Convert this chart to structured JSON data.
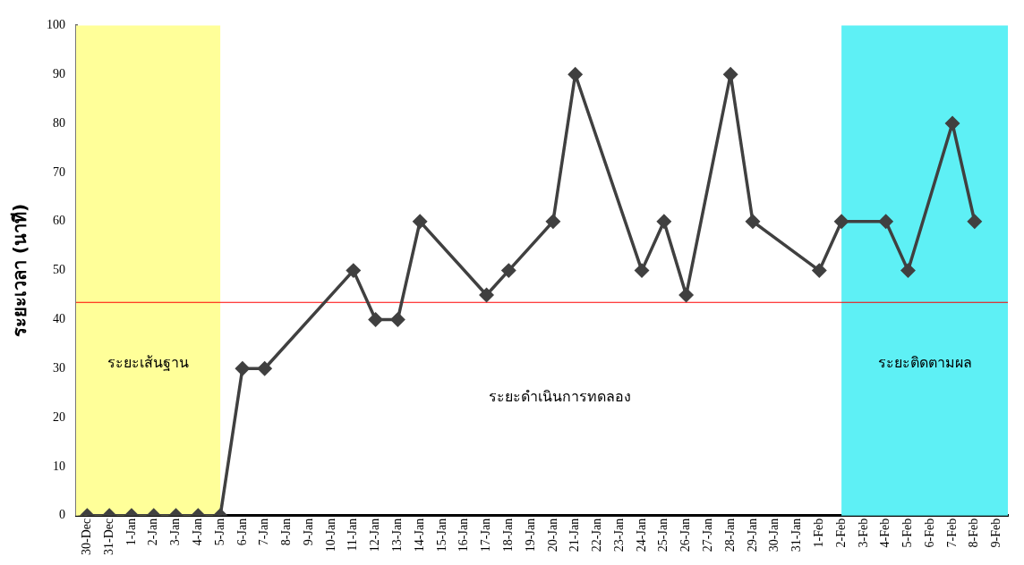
{
  "chart_data": {
    "type": "line",
    "ylabel": "ระยะเวลา (นาที)",
    "categories": [
      "30-Dec",
      "31-Dec",
      "1-Jan",
      "2-Jan",
      "3-Jan",
      "4-Jan",
      "5-Jan",
      "6-Jan",
      "7-Jan",
      "8-Jan",
      "9-Jan",
      "10-Jan",
      "11-Jan",
      "12-Jan",
      "13-Jan",
      "14-Jan",
      "15-Jan",
      "16-Jan",
      "17-Jan",
      "18-Jan",
      "19-Jan",
      "20-Jan",
      "21-Jan",
      "22-Jan",
      "23-Jan",
      "24-Jan",
      "25-Jan",
      "26-Jan",
      "27-Jan",
      "28-Jan",
      "29-Jan",
      "30-Jan",
      "31-Jan",
      "1-Feb",
      "2-Feb",
      "3-Feb",
      "4-Feb",
      "5-Feb",
      "6-Feb",
      "7-Feb",
      "8-Feb",
      "9-Feb"
    ],
    "series": [
      {
        "color": "#404040",
        "values": [
          0,
          0,
          0,
          0,
          0,
          0,
          0,
          30,
          30,
          null,
          null,
          null,
          50,
          40,
          40,
          60,
          null,
          null,
          45,
          50,
          null,
          60,
          90,
          null,
          null,
          50,
          60,
          45,
          null,
          90,
          60,
          null,
          null,
          50,
          60,
          null,
          60,
          50,
          null,
          80,
          60,
          null
        ]
      }
    ],
    "ylim": [
      0,
      100
    ],
    "yticks": [
      0,
      10,
      20,
      30,
      40,
      50,
      60,
      70,
      80,
      90,
      100
    ],
    "grid": false,
    "legend": false,
    "marker": "diamond",
    "line_style": "solid",
    "ref_lines": [
      {
        "axis": "y",
        "value": 43.5,
        "color": "#ff0000"
      }
    ],
    "bands": [
      {
        "axis": "x",
        "from": "30-Dec",
        "to": "5-Jan",
        "label": "ระยะเส้นฐาน",
        "color": "#ffff99"
      },
      {
        "axis": "x",
        "from": "2-Feb",
        "to": "9-Feb",
        "label": "ระยะติดตามผล",
        "color": "#5ef0f5"
      }
    ],
    "annotations": [
      "ระยะดำเนินการทดลอง"
    ]
  }
}
